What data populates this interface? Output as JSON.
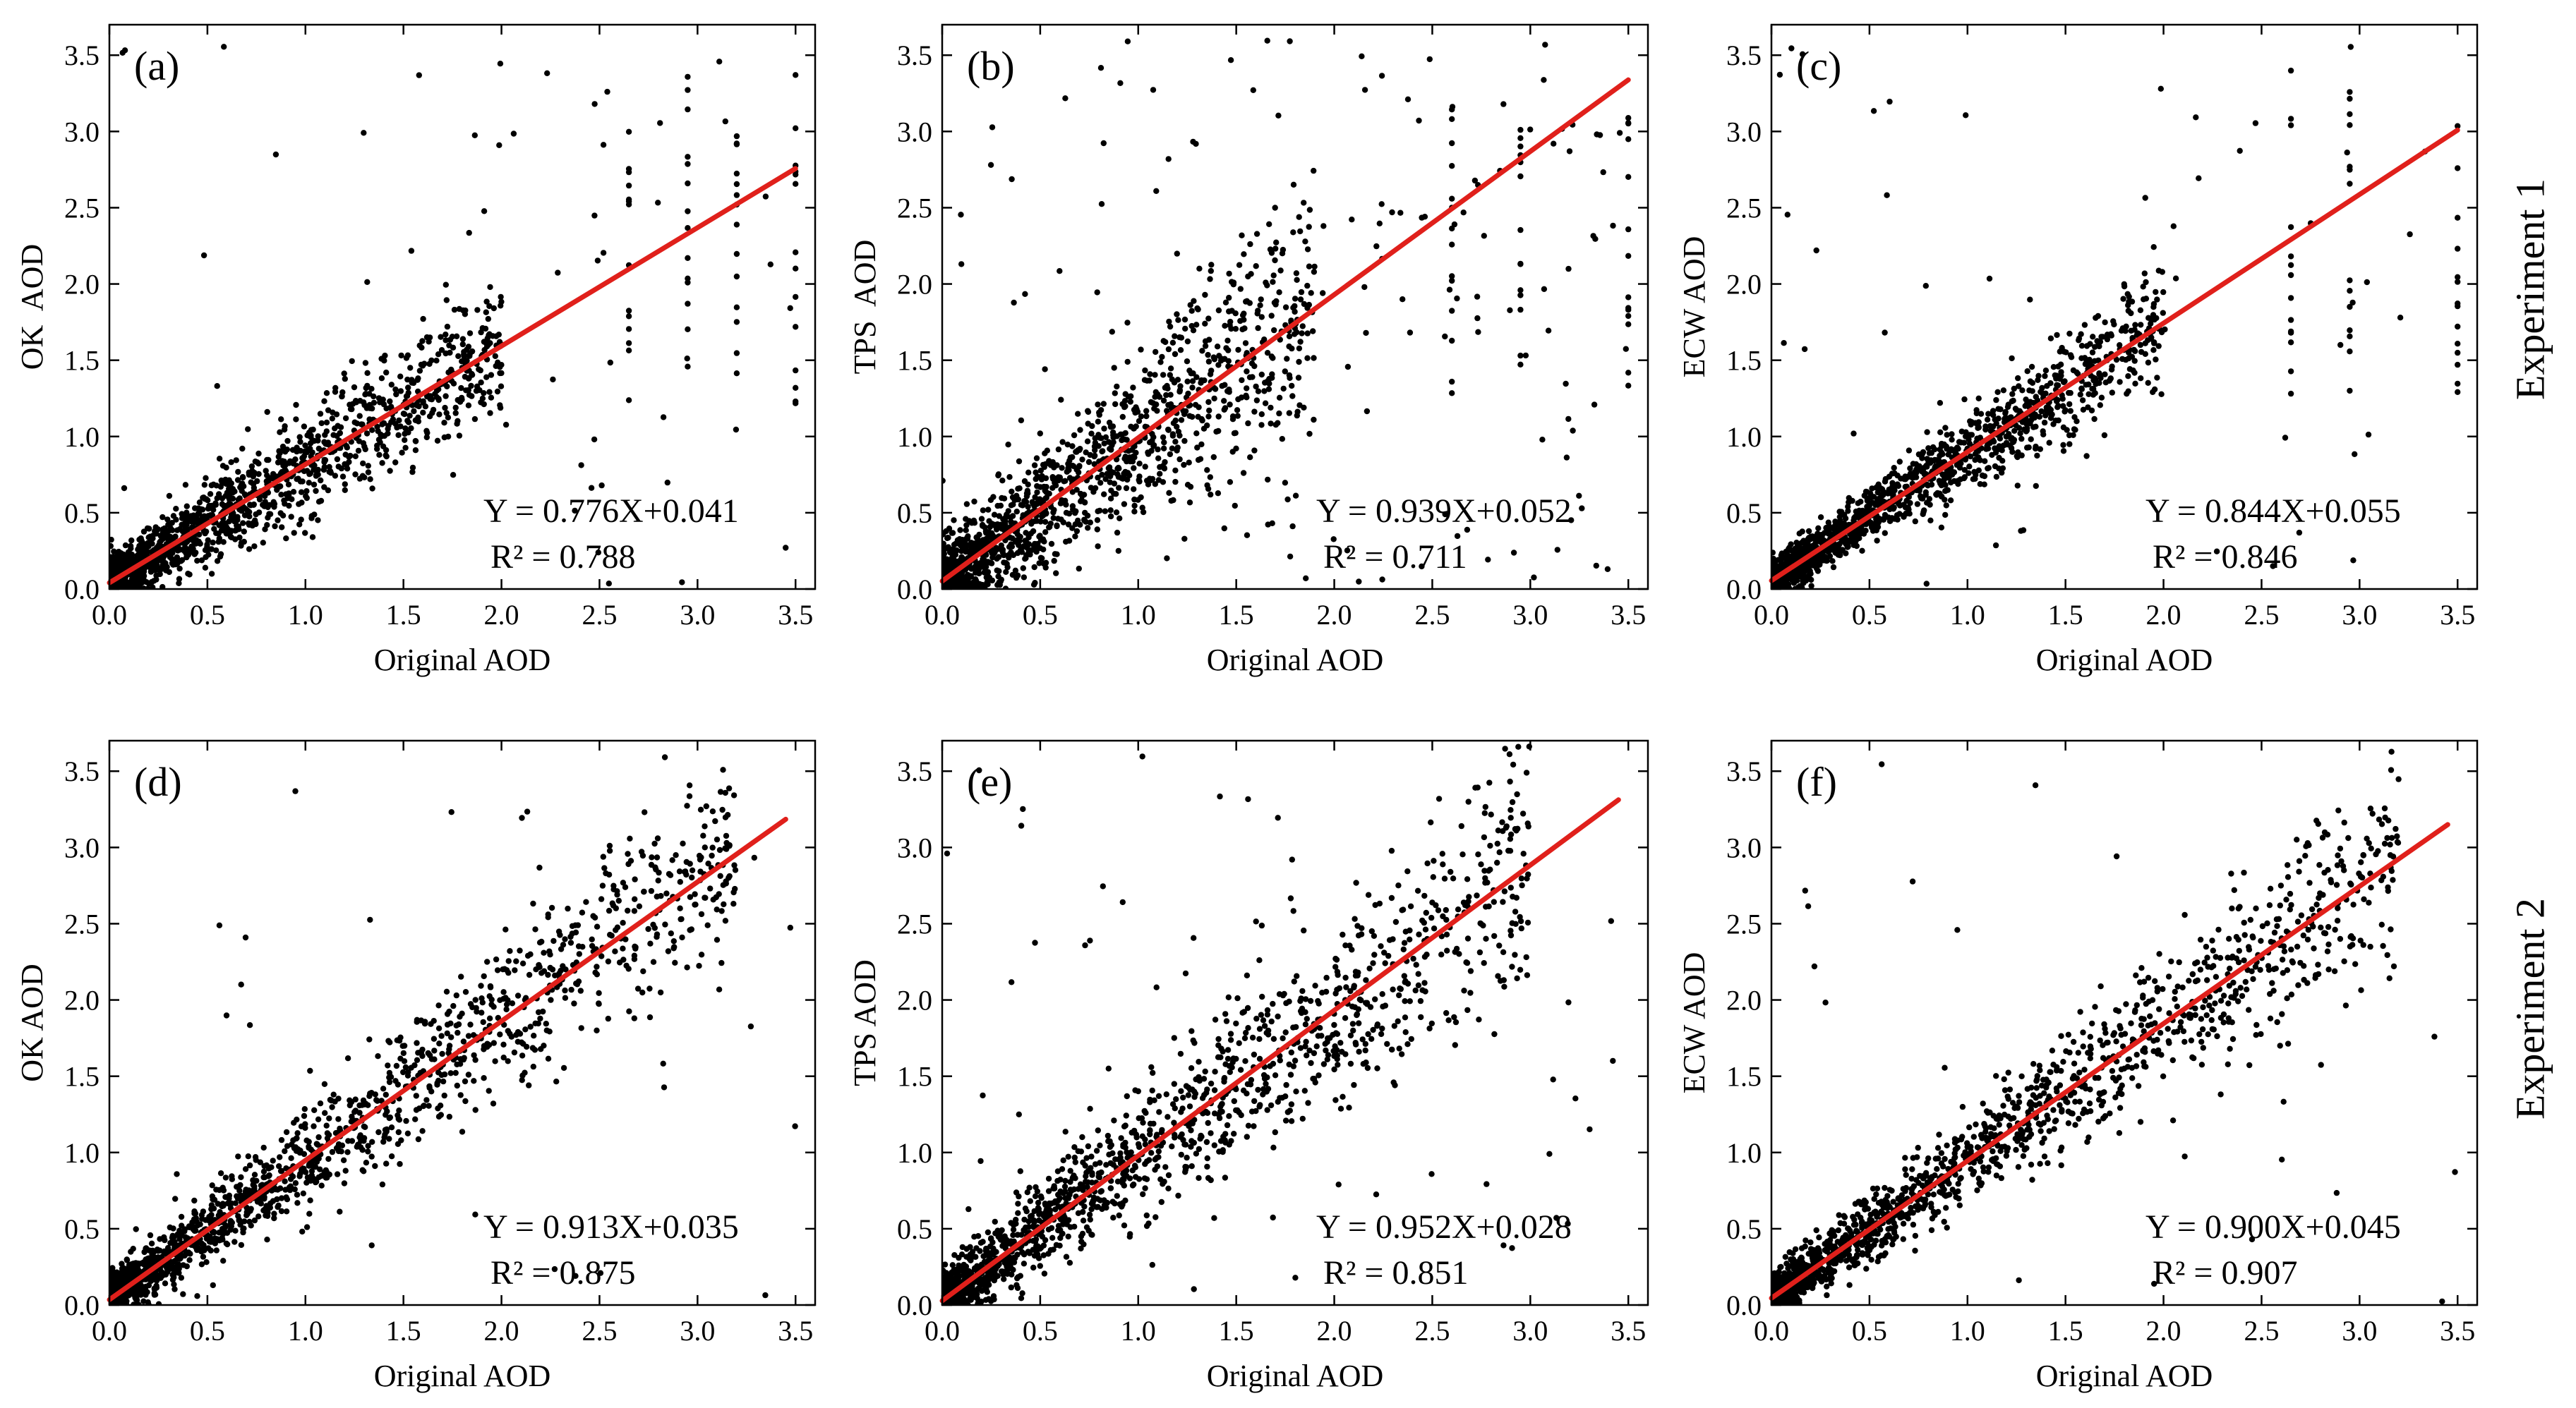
{
  "colors": {
    "point": "#000000",
    "fit_line": "#e0201b",
    "axis": "#000000",
    "background": "#ffffff"
  },
  "row_labels": [
    "Experiment 1",
    "Experiment 2"
  ],
  "chart_data": [
    {
      "type": "scatter",
      "panel": "(a)",
      "row": 0,
      "col": 0,
      "xlabel": "Original AOD",
      "ylabel": "OK  AOD",
      "xlim": [
        0,
        3.6
      ],
      "ylim": [
        0,
        3.7
      ],
      "xticks": [
        "0.0",
        "0.5",
        "1.0",
        "1.5",
        "2.0",
        "2.5",
        "3.0",
        "3.5"
      ],
      "yticks": [
        "0.0",
        "0.5",
        "1.0",
        "1.5",
        "2.0",
        "2.5",
        "3.0",
        "3.5"
      ],
      "regression": {
        "slope": 0.776,
        "intercept": 0.041,
        "r2": 0.788,
        "x_range": [
          0,
          3.5
        ]
      },
      "equation": "Y = 0.776X+0.041",
      "r2_label": "R² = 0.788",
      "scatter_spread": 0.17,
      "outlier_rate": 0.04,
      "seed": 11,
      "cloud_x_max": 2.0,
      "vertical_streaks_x": [
        2.65,
        2.95,
        3.2,
        3.5
      ]
    },
    {
      "type": "scatter",
      "panel": "(b)",
      "row": 0,
      "col": 1,
      "xlabel": "Original AOD",
      "ylabel": "TPS  AOD",
      "xlim": [
        0,
        3.6
      ],
      "ylim": [
        0,
        3.7
      ],
      "xticks": [
        "0.0",
        "0.5",
        "1.0",
        "1.5",
        "2.0",
        "2.5",
        "3.0",
        "3.5"
      ],
      "yticks": [
        "0.0",
        "0.5",
        "1.0",
        "1.5",
        "2.0",
        "2.5",
        "3.0",
        "3.5"
      ],
      "regression": {
        "slope": 0.939,
        "intercept": 0.052,
        "r2": 0.711,
        "x_range": [
          0,
          3.5
        ]
      },
      "equation": "Y = 0.939X+0.052",
      "r2_label": "R² = 0.711",
      "scatter_spread": 0.27,
      "outlier_rate": 0.08,
      "seed": 23,
      "cloud_x_max": 1.9,
      "vertical_streaks_x": [
        2.6,
        2.95,
        3.5
      ]
    },
    {
      "type": "scatter",
      "panel": "(c)",
      "row": 0,
      "col": 2,
      "xlabel": "Original AOD",
      "ylabel": "ECW AOD",
      "xlim": [
        0,
        3.6
      ],
      "ylim": [
        0,
        3.7
      ],
      "xticks": [
        "0.0",
        "0.5",
        "1.0",
        "1.5",
        "2.0",
        "2.5",
        "3.0",
        "3.5"
      ],
      "yticks": [
        "0.0",
        "0.5",
        "1.0",
        "1.5",
        "2.0",
        "2.5",
        "3.0",
        "3.5"
      ],
      "regression": {
        "slope": 0.844,
        "intercept": 0.055,
        "r2": 0.846,
        "x_range": [
          0,
          3.5
        ]
      },
      "equation": "Y = 0.844X+0.055",
      "r2_label": "R² = 0.846",
      "scatter_spread": 0.13,
      "outlier_rate": 0.03,
      "seed": 37,
      "cloud_x_max": 2.0,
      "vertical_streaks_x": [
        2.65,
        2.95,
        3.5
      ]
    },
    {
      "type": "scatter",
      "panel": "(d)",
      "row": 1,
      "col": 0,
      "xlabel": "Original AOD",
      "ylabel": "OK AOD",
      "xlim": [
        0,
        3.6
      ],
      "ylim": [
        0,
        3.7
      ],
      "xticks": [
        "0.0",
        "0.5",
        "1.0",
        "1.5",
        "2.0",
        "2.5",
        "3.0",
        "3.5"
      ],
      "yticks": [
        "0.0",
        "0.5",
        "1.0",
        "1.5",
        "2.0",
        "2.5",
        "3.0",
        "3.5"
      ],
      "regression": {
        "slope": 0.913,
        "intercept": 0.035,
        "r2": 0.875,
        "x_range": [
          0,
          3.45
        ]
      },
      "equation": "Y = 0.913X+0.035",
      "r2_label": "R² = 0.875",
      "scatter_spread": 0.16,
      "outlier_rate": 0.02,
      "seed": 41,
      "cloud_x_max": 3.2,
      "vertical_streaks_x": []
    },
    {
      "type": "scatter",
      "panel": "(e)",
      "row": 1,
      "col": 1,
      "xlabel": "Original AOD",
      "ylabel": "TPS AOD",
      "xlim": [
        0,
        3.6
      ],
      "ylim": [
        0,
        3.7
      ],
      "xticks": [
        "0.0",
        "0.5",
        "1.0",
        "1.5",
        "2.0",
        "2.5",
        "3.0",
        "3.5"
      ],
      "yticks": [
        "0.0",
        "0.5",
        "1.0",
        "1.5",
        "2.0",
        "2.5",
        "3.0",
        "3.5"
      ],
      "regression": {
        "slope": 0.952,
        "intercept": 0.028,
        "r2": 0.851,
        "x_range": [
          0,
          3.45
        ]
      },
      "equation": "Y = 0.952X+0.028",
      "r2_label": "R² = 0.851",
      "scatter_spread": 0.2,
      "outlier_rate": 0.04,
      "seed": 53,
      "cloud_x_max": 3.0,
      "vertical_streaks_x": []
    },
    {
      "type": "scatter",
      "panel": "(f)",
      "row": 1,
      "col": 2,
      "xlabel": "Original AOD",
      "ylabel": "ECW AOD",
      "xlim": [
        0,
        3.6
      ],
      "ylim": [
        0,
        3.7
      ],
      "xticks": [
        "0.0",
        "0.5",
        "1.0",
        "1.5",
        "2.0",
        "2.5",
        "3.0",
        "3.5"
      ],
      "yticks": [
        "0.0",
        "0.5",
        "1.0",
        "1.5",
        "2.0",
        "2.5",
        "3.0",
        "3.5"
      ],
      "regression": {
        "slope": 0.9,
        "intercept": 0.045,
        "r2": 0.907,
        "x_range": [
          0,
          3.45
        ]
      },
      "equation": "Y = 0.900X+0.045",
      "r2_label": "R² = 0.907",
      "scatter_spread": 0.15,
      "outlier_rate": 0.02,
      "seed": 67,
      "cloud_x_max": 3.2,
      "vertical_streaks_x": []
    }
  ]
}
